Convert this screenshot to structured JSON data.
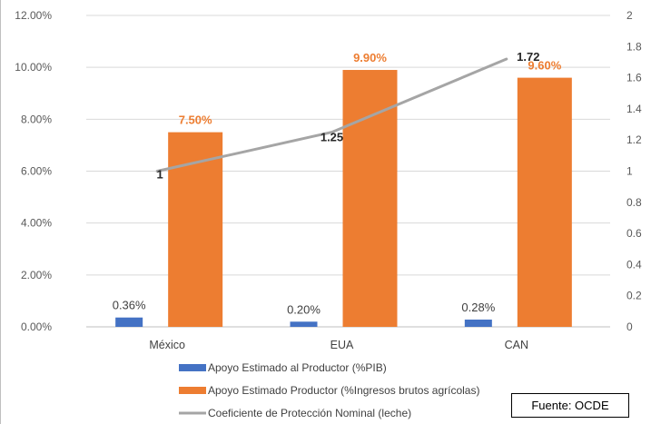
{
  "chart_data": {
    "type": "bar",
    "categories": [
      "México",
      "EUA",
      "CAN"
    ],
    "series": [
      {
        "name": "Apoyo Estimado al Productor (%PIB)",
        "type": "bar",
        "axis": "left",
        "values": [
          0.36,
          0.2,
          0.28
        ],
        "labels": [
          "0.36%",
          "0.20%",
          "0.28%"
        ],
        "color": "#4472C4"
      },
      {
        "name": "Apoyo Estimado Productor (%Ingresos brutos agrícolas)",
        "type": "bar",
        "axis": "left",
        "values": [
          7.5,
          9.9,
          9.6
        ],
        "labels": [
          "7.50%",
          "9.90%",
          "9.60%"
        ],
        "color": "#ED7D31"
      },
      {
        "name": "Coeficiente de Protección Nominal (leche)",
        "type": "line",
        "axis": "right",
        "values": [
          1,
          1.25,
          1.72
        ],
        "labels": [
          "1",
          "1.25",
          "1.72"
        ],
        "color": "#A5A5A5"
      }
    ],
    "y_left": {
      "ylim": [
        0,
        12
      ],
      "ticks": [
        "0.00%",
        "2.00%",
        "4.00%",
        "6.00%",
        "8.00%",
        "10.00%",
        "12.00%"
      ]
    },
    "y_right": {
      "ylim": [
        0,
        2
      ],
      "ticks": [
        "0",
        "0.2",
        "0.4",
        "0.6",
        "0.8",
        "1",
        "1.2",
        "1.4",
        "1.6",
        "1.8",
        "2"
      ]
    },
    "grid": true,
    "legend_position": "bottom-left"
  },
  "source_text": "Fuente: OCDE"
}
